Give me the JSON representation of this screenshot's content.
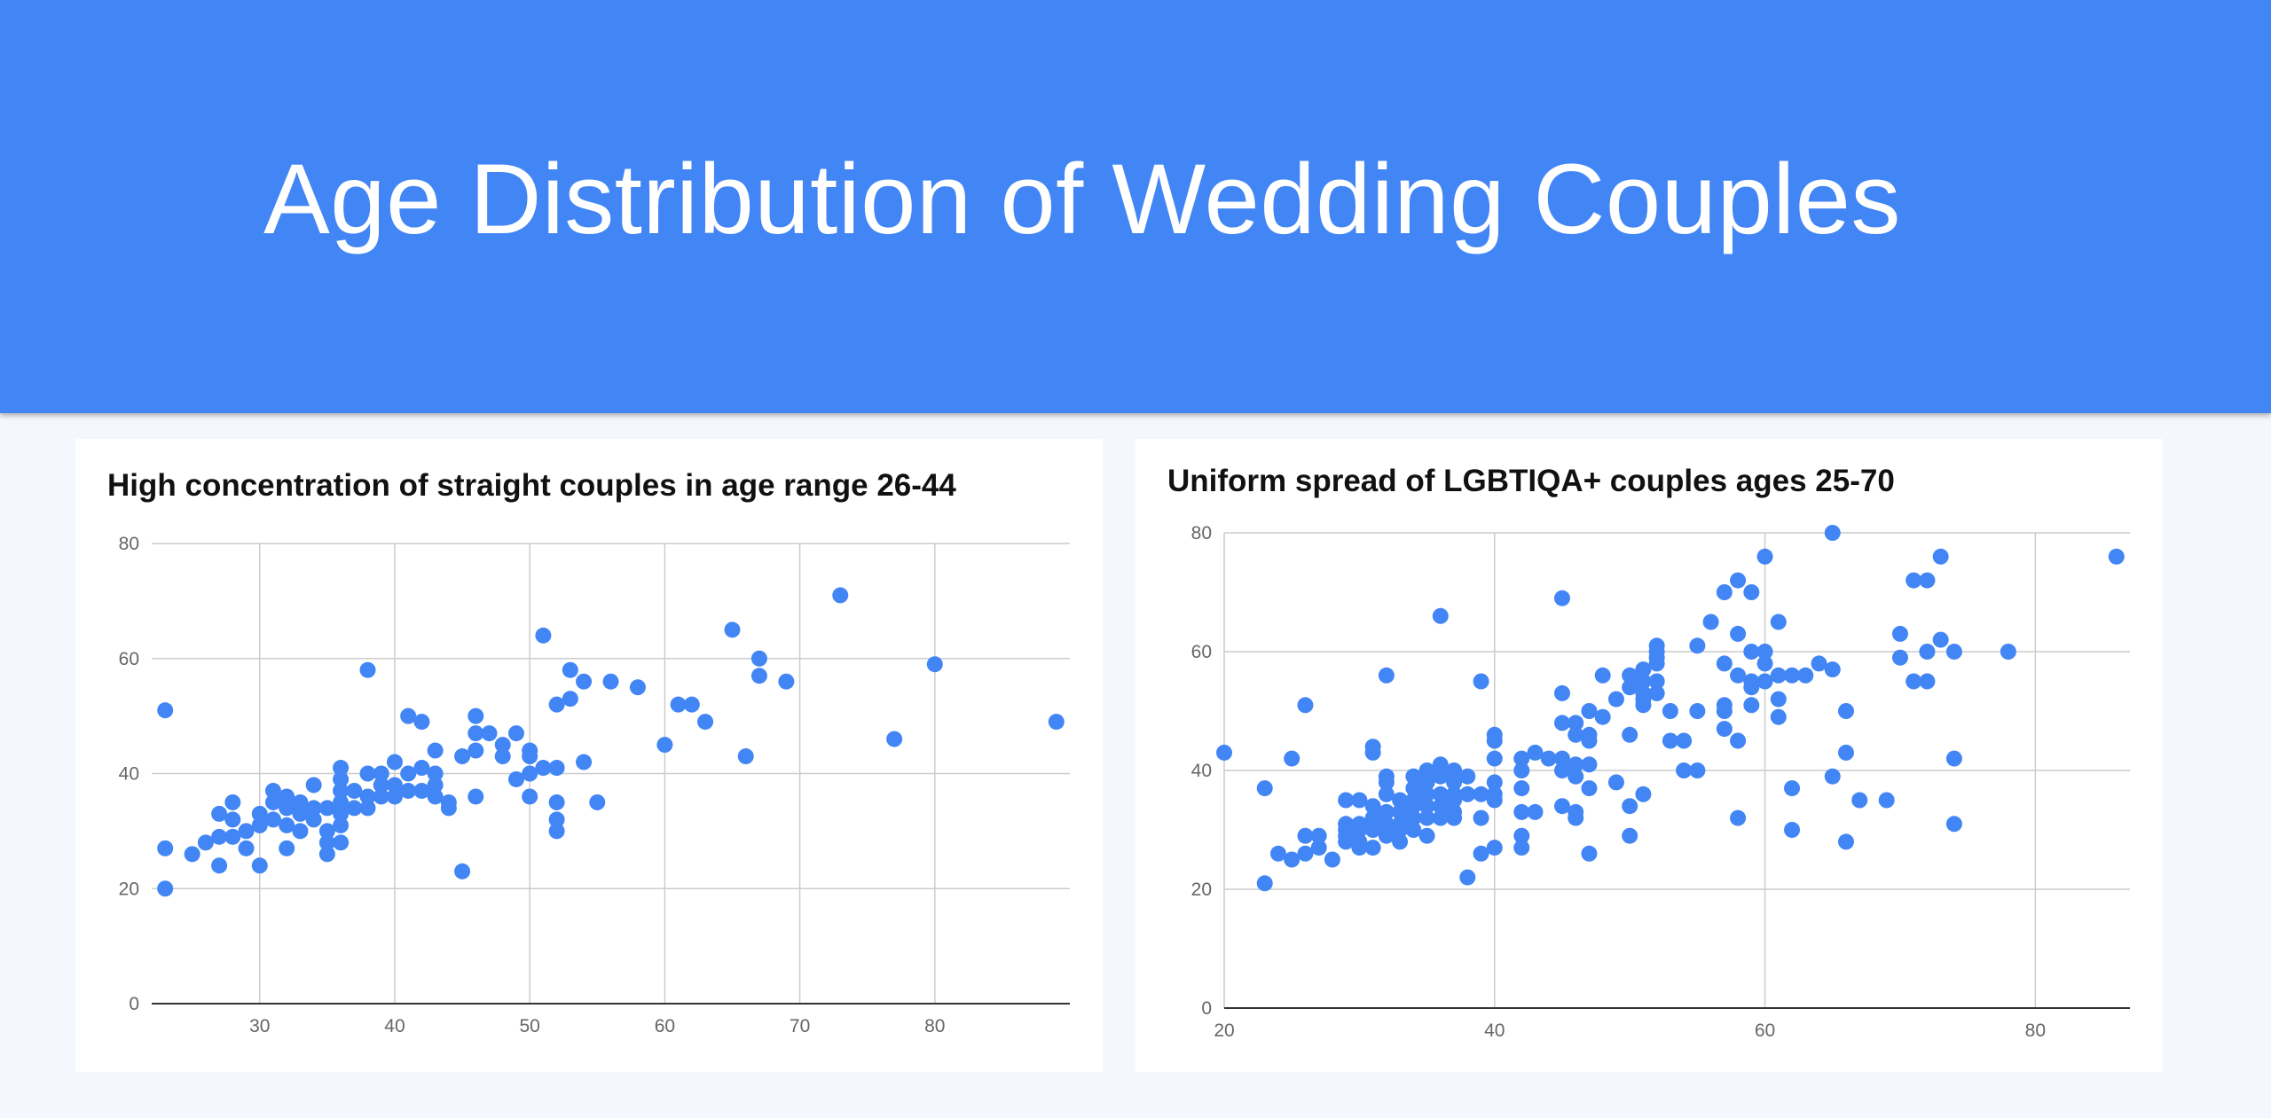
{
  "header": {
    "title": "Age Distribution of Wedding Couples"
  },
  "colors": {
    "banner": "#4285f4",
    "point": "#4285f4",
    "grid": "#cccccc",
    "axis": "#333333"
  },
  "chart_data": [
    {
      "type": "scatter",
      "title": "High concentration of straight couples in age range 26-44",
      "xlabel": "",
      "ylabel": "",
      "xlim": [
        22,
        90
      ],
      "ylim": [
        0,
        80
      ],
      "xticks": [
        30,
        40,
        50,
        60,
        70,
        80
      ],
      "yticks": [
        0,
        20,
        40,
        60,
        80
      ],
      "grid": true,
      "points": [
        [
          23,
          51
        ],
        [
          23,
          27
        ],
        [
          23,
          20
        ],
        [
          25,
          26
        ],
        [
          26,
          28
        ],
        [
          27,
          33
        ],
        [
          27,
          29
        ],
        [
          27,
          24
        ],
        [
          28,
          35
        ],
        [
          28,
          32
        ],
        [
          28,
          29
        ],
        [
          29,
          27
        ],
        [
          29,
          30
        ],
        [
          30,
          33
        ],
        [
          30,
          31
        ],
        [
          30,
          24
        ],
        [
          31,
          37
        ],
        [
          31,
          35
        ],
        [
          31,
          32
        ],
        [
          32,
          36
        ],
        [
          32,
          34
        ],
        [
          32,
          31
        ],
        [
          32,
          27
        ],
        [
          33,
          35
        ],
        [
          33,
          33
        ],
        [
          33,
          30
        ],
        [
          34,
          38
        ],
        [
          34,
          34
        ],
        [
          34,
          32
        ],
        [
          35,
          34
        ],
        [
          35,
          30
        ],
        [
          35,
          28
        ],
        [
          35,
          26
        ],
        [
          36,
          41
        ],
        [
          36,
          39
        ],
        [
          36,
          37
        ],
        [
          36,
          35
        ],
        [
          36,
          33
        ],
        [
          36,
          31
        ],
        [
          36,
          28
        ],
        [
          37,
          37
        ],
        [
          37,
          34
        ],
        [
          38,
          58
        ],
        [
          38,
          40
        ],
        [
          38,
          36
        ],
        [
          38,
          34
        ],
        [
          39,
          40
        ],
        [
          39,
          38
        ],
        [
          39,
          36
        ],
        [
          40,
          42
        ],
        [
          40,
          38
        ],
        [
          40,
          36
        ],
        [
          41,
          50
        ],
        [
          41,
          40
        ],
        [
          41,
          37
        ],
        [
          42,
          49
        ],
        [
          42,
          41
        ],
        [
          42,
          37
        ],
        [
          43,
          44
        ],
        [
          43,
          40
        ],
        [
          43,
          38
        ],
        [
          43,
          36
        ],
        [
          44,
          35
        ],
        [
          44,
          34
        ],
        [
          45,
          43
        ],
        [
          45,
          23
        ],
        [
          46,
          50
        ],
        [
          46,
          47
        ],
        [
          46,
          44
        ],
        [
          46,
          36
        ],
        [
          47,
          47
        ],
        [
          48,
          45
        ],
        [
          48,
          43
        ],
        [
          49,
          47
        ],
        [
          49,
          39
        ],
        [
          50,
          44
        ],
        [
          50,
          43
        ],
        [
          50,
          40
        ],
        [
          50,
          36
        ],
        [
          51,
          64
        ],
        [
          51,
          41
        ],
        [
          52,
          52
        ],
        [
          52,
          41
        ],
        [
          52,
          35
        ],
        [
          52,
          32
        ],
        [
          52,
          30
        ],
        [
          53,
          58
        ],
        [
          53,
          53
        ],
        [
          54,
          56
        ],
        [
          54,
          42
        ],
        [
          55,
          35
        ],
        [
          56,
          56
        ],
        [
          58,
          55
        ],
        [
          60,
          45
        ],
        [
          61,
          52
        ],
        [
          62,
          52
        ],
        [
          63,
          49
        ],
        [
          65,
          65
        ],
        [
          66,
          43
        ],
        [
          67,
          60
        ],
        [
          67,
          57
        ],
        [
          69,
          56
        ],
        [
          73,
          71
        ],
        [
          77,
          46
        ],
        [
          80,
          59
        ],
        [
          89,
          49
        ]
      ]
    },
    {
      "type": "scatter",
      "title": "Uniform spread of LGBTIQA+ couples ages 25-70",
      "xlabel": "",
      "ylabel": "",
      "xlim": [
        20,
        87
      ],
      "ylim": [
        0,
        80
      ],
      "xticks": [
        20,
        40,
        60,
        80
      ],
      "yticks": [
        0,
        20,
        40,
        60,
        80
      ],
      "grid": true,
      "points": [
        [
          20,
          43
        ],
        [
          23,
          37
        ],
        [
          23,
          21
        ],
        [
          24,
          26
        ],
        [
          25,
          42
        ],
        [
          25,
          25
        ],
        [
          26,
          51
        ],
        [
          26,
          29
        ],
        [
          26,
          26
        ],
        [
          27,
          29
        ],
        [
          27,
          27
        ],
        [
          28,
          25
        ],
        [
          29,
          35
        ],
        [
          29,
          31
        ],
        [
          29,
          30
        ],
        [
          29,
          29
        ],
        [
          29,
          28
        ],
        [
          30,
          35
        ],
        [
          30,
          31
        ],
        [
          30,
          30
        ],
        [
          30,
          28
        ],
        [
          30,
          27
        ],
        [
          31,
          44
        ],
        [
          31,
          43
        ],
        [
          31,
          34
        ],
        [
          31,
          32
        ],
        [
          31,
          30
        ],
        [
          31,
          27
        ],
        [
          32,
          56
        ],
        [
          32,
          39
        ],
        [
          32,
          38
        ],
        [
          32,
          36
        ],
        [
          32,
          33
        ],
        [
          32,
          31
        ],
        [
          32,
          29
        ],
        [
          33,
          35
        ],
        [
          33,
          33
        ],
        [
          33,
          31
        ],
        [
          33,
          30
        ],
        [
          33,
          28
        ],
        [
          34,
          39
        ],
        [
          34,
          37
        ],
        [
          34,
          35
        ],
        [
          34,
          34
        ],
        [
          34,
          32
        ],
        [
          34,
          30
        ],
        [
          35,
          40
        ],
        [
          35,
          38
        ],
        [
          35,
          36
        ],
        [
          35,
          34
        ],
        [
          35,
          32
        ],
        [
          35,
          29
        ],
        [
          36,
          66
        ],
        [
          36,
          41
        ],
        [
          36,
          39
        ],
        [
          36,
          36
        ],
        [
          36,
          34
        ],
        [
          36,
          32
        ],
        [
          37,
          40
        ],
        [
          37,
          38
        ],
        [
          37,
          36
        ],
        [
          37,
          35
        ],
        [
          37,
          33
        ],
        [
          37,
          32
        ],
        [
          38,
          39
        ],
        [
          38,
          36
        ],
        [
          38,
          22
        ],
        [
          39,
          55
        ],
        [
          39,
          36
        ],
        [
          39,
          32
        ],
        [
          39,
          26
        ],
        [
          40,
          46
        ],
        [
          40,
          45
        ],
        [
          40,
          42
        ],
        [
          40,
          38
        ],
        [
          40,
          36
        ],
        [
          40,
          35
        ],
        [
          40,
          27
        ],
        [
          42,
          42
        ],
        [
          42,
          40
        ],
        [
          42,
          37
        ],
        [
          42,
          33
        ],
        [
          42,
          29
        ],
        [
          42,
          27
        ],
        [
          43,
          43
        ],
        [
          43,
          33
        ],
        [
          44,
          42
        ],
        [
          45,
          69
        ],
        [
          45,
          53
        ],
        [
          45,
          48
        ],
        [
          45,
          42
        ],
        [
          45,
          40
        ],
        [
          45,
          34
        ],
        [
          46,
          48
        ],
        [
          46,
          46
        ],
        [
          46,
          41
        ],
        [
          46,
          39
        ],
        [
          46,
          33
        ],
        [
          46,
          32
        ],
        [
          47,
          50
        ],
        [
          47,
          46
        ],
        [
          47,
          45
        ],
        [
          47,
          41
        ],
        [
          47,
          37
        ],
        [
          47,
          26
        ],
        [
          48,
          56
        ],
        [
          48,
          49
        ],
        [
          49,
          52
        ],
        [
          49,
          38
        ],
        [
          50,
          56
        ],
        [
          50,
          54
        ],
        [
          50,
          46
        ],
        [
          50,
          34
        ],
        [
          50,
          29
        ],
        [
          51,
          57
        ],
        [
          51,
          55
        ],
        [
          51,
          53
        ],
        [
          51,
          52
        ],
        [
          51,
          51
        ],
        [
          51,
          36
        ],
        [
          52,
          61
        ],
        [
          52,
          60
        ],
        [
          52,
          59
        ],
        [
          52,
          58
        ],
        [
          52,
          55
        ],
        [
          52,
          53
        ],
        [
          53,
          50
        ],
        [
          53,
          45
        ],
        [
          54,
          45
        ],
        [
          54,
          40
        ],
        [
          55,
          61
        ],
        [
          55,
          50
        ],
        [
          55,
          40
        ],
        [
          56,
          65
        ],
        [
          57,
          70
        ],
        [
          57,
          58
        ],
        [
          57,
          51
        ],
        [
          57,
          50
        ],
        [
          57,
          47
        ],
        [
          58,
          72
        ],
        [
          58,
          63
        ],
        [
          58,
          56
        ],
        [
          58,
          45
        ],
        [
          58,
          32
        ],
        [
          59,
          70
        ],
        [
          59,
          60
        ],
        [
          59,
          55
        ],
        [
          59,
          54
        ],
        [
          59,
          51
        ],
        [
          60,
          76
        ],
        [
          60,
          60
        ],
        [
          60,
          58
        ],
        [
          60,
          55
        ],
        [
          61,
          65
        ],
        [
          61,
          56
        ],
        [
          61,
          52
        ],
        [
          61,
          49
        ],
        [
          62,
          56
        ],
        [
          62,
          37
        ],
        [
          62,
          30
        ],
        [
          63,
          56
        ],
        [
          64,
          58
        ],
        [
          65,
          80
        ],
        [
          65,
          57
        ],
        [
          65,
          39
        ],
        [
          66,
          50
        ],
        [
          66,
          43
        ],
        [
          66,
          28
        ],
        [
          67,
          35
        ],
        [
          69,
          35
        ],
        [
          70,
          63
        ],
        [
          70,
          59
        ],
        [
          71,
          72
        ],
        [
          71,
          55
        ],
        [
          72,
          72
        ],
        [
          72,
          60
        ],
        [
          72,
          55
        ],
        [
          73,
          76
        ],
        [
          73,
          62
        ],
        [
          74,
          60
        ],
        [
          74,
          42
        ],
        [
          74,
          31
        ],
        [
          78,
          60
        ],
        [
          86,
          76
        ]
      ]
    }
  ]
}
